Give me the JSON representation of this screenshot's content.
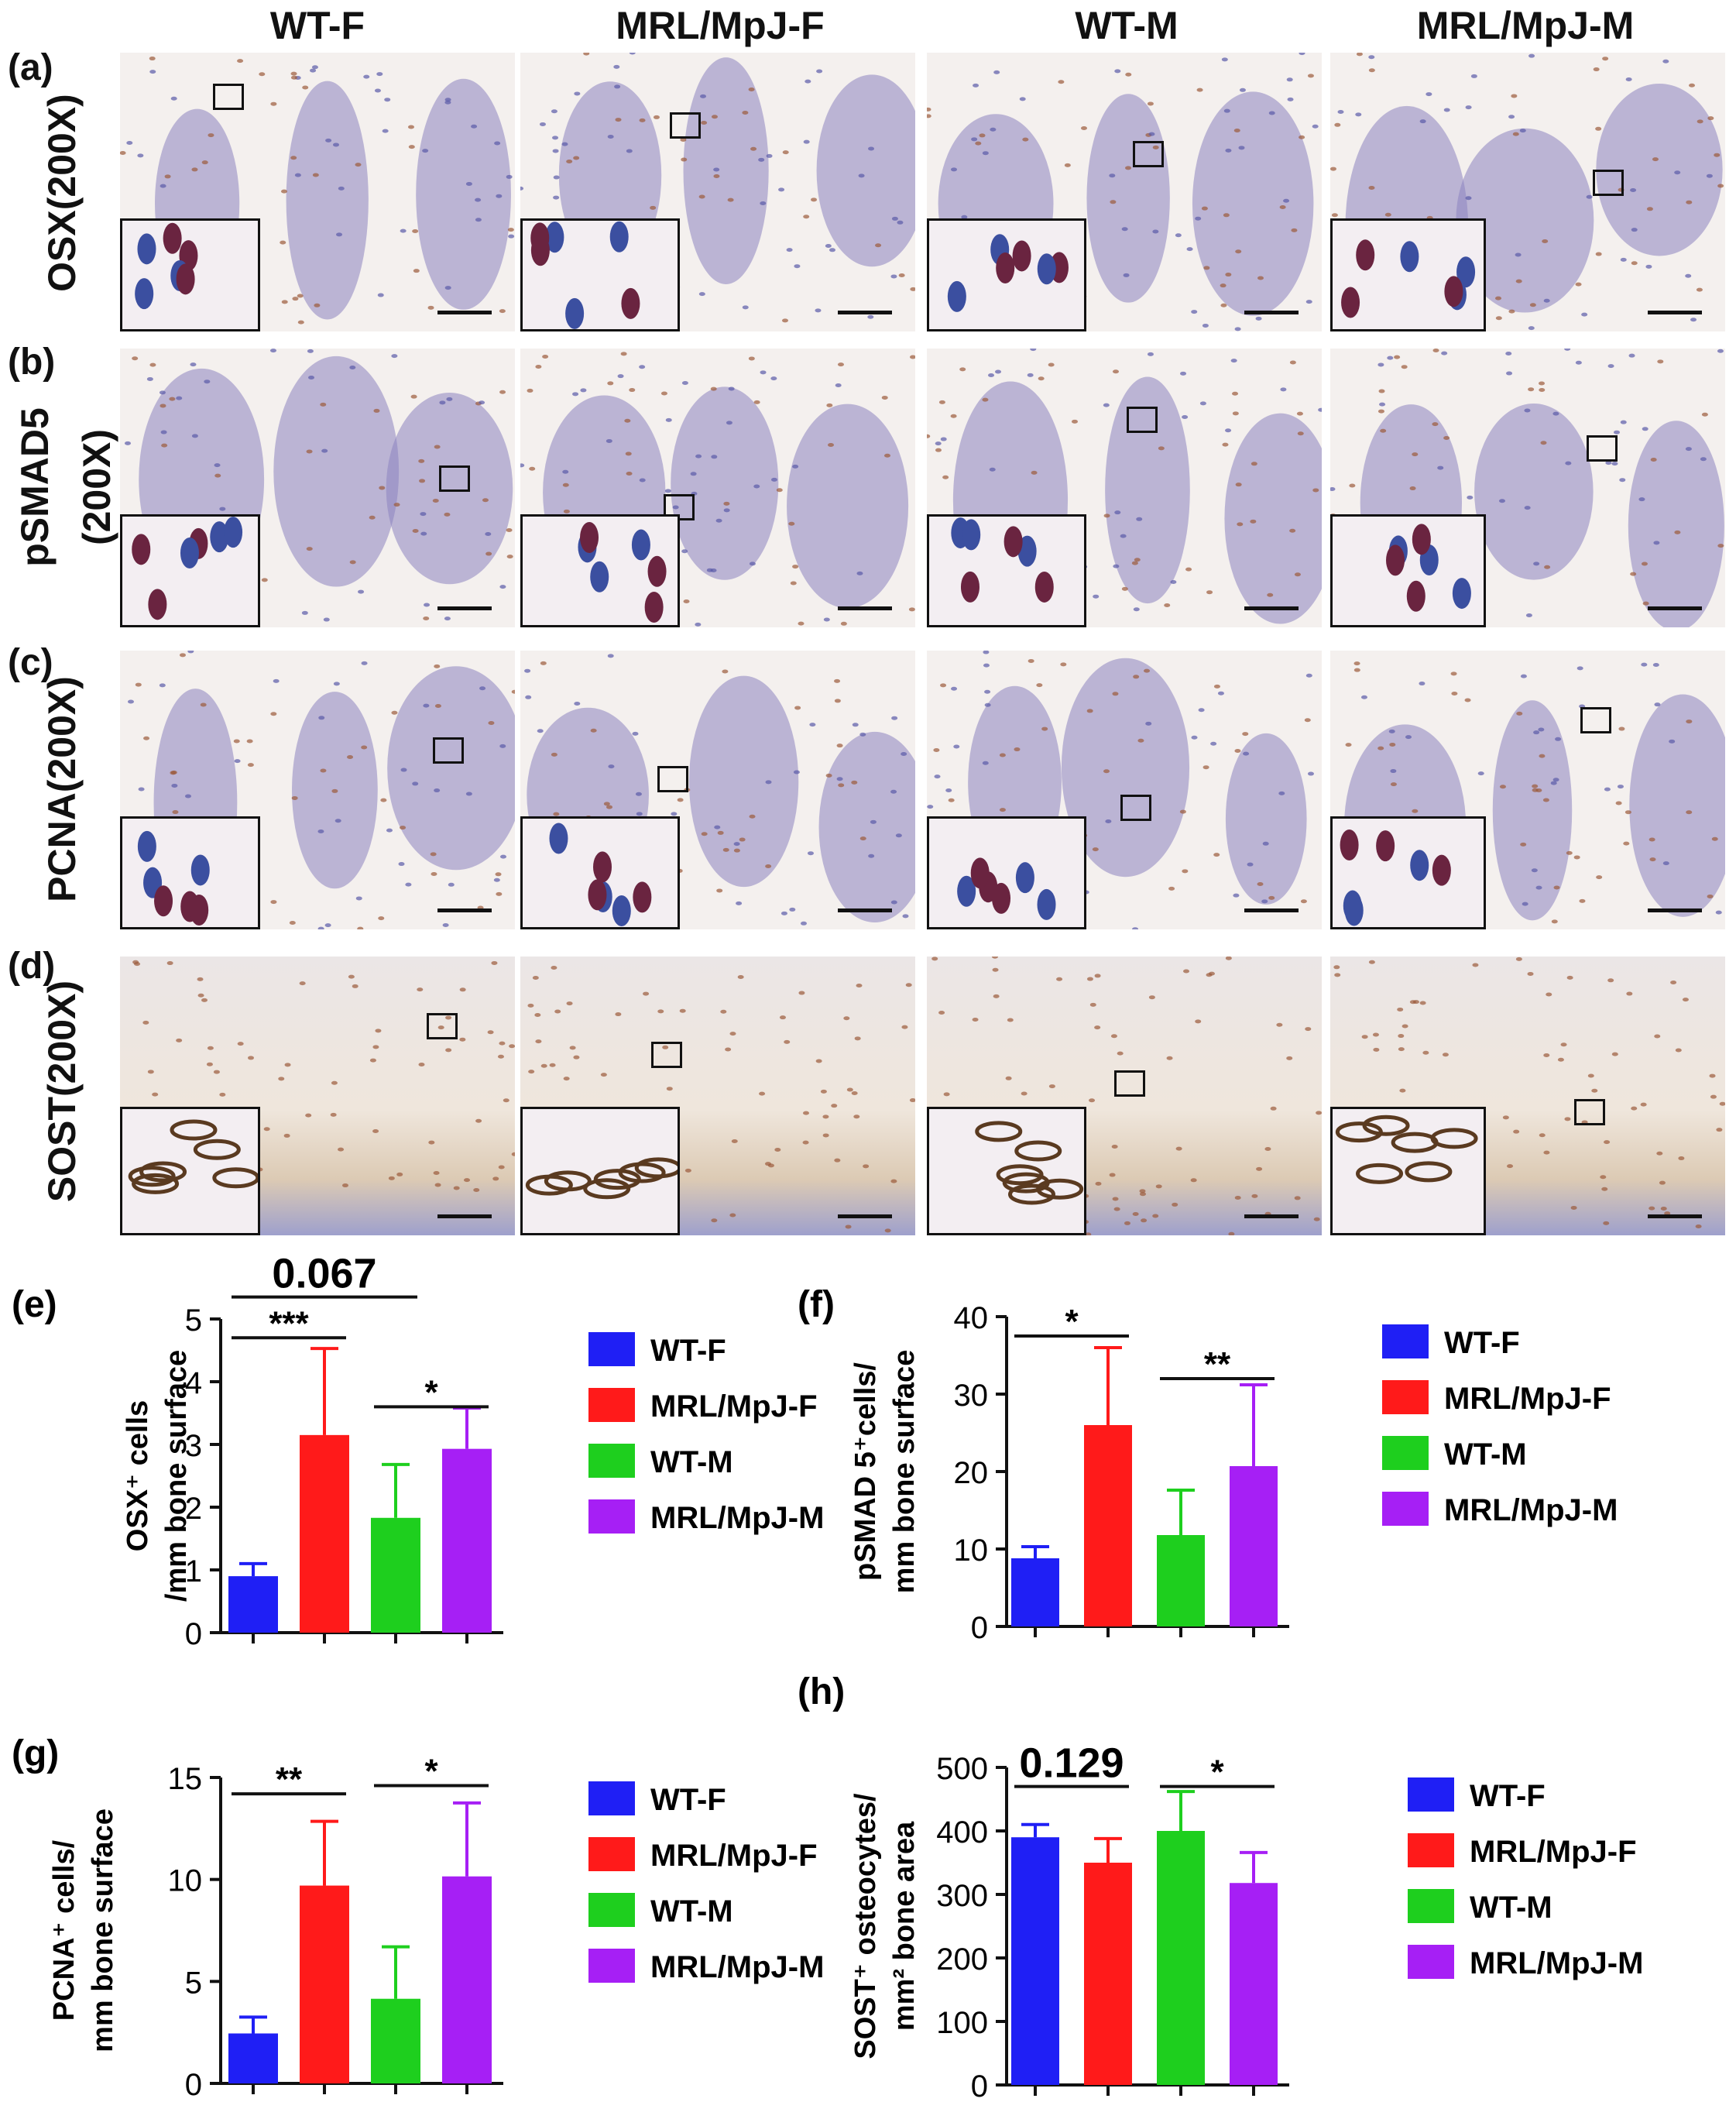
{
  "columns": [
    "WT-F",
    "MRL/MpJ-F",
    "WT-M",
    "MRL/MpJ-M"
  ],
  "rows": [
    {
      "letter": "(a)",
      "label": "OSX(200X)"
    },
    {
      "letter": "(b)",
      "label": "pSMAD5",
      "label2": "(200X)"
    },
    {
      "letter": "(c)",
      "label": "PCNA(200X)"
    },
    {
      "letter": "(d)",
      "label": "SOST(200X)"
    }
  ],
  "stain_colors": {
    "background": "#efe8ee",
    "bone": "#f4f0ee",
    "marrow": "#8d84bf",
    "brown": "#9b5a3a"
  },
  "series_colors": {
    "WT-F": "#1f1ff5",
    "MRL/MpJ-F": "#ff1a1a",
    "WT-M": "#1ecf1e",
    "MRL/MpJ-M": "#a61ff5"
  },
  "chart_data": [
    {
      "panel": "(e)",
      "type": "bar",
      "ylabel": [
        "OSX⁺ cells",
        "/mm bone surface"
      ],
      "categories": [
        "WT-F",
        "MRL/MpJ-F",
        "WT-M",
        "MRL/MpJ-M"
      ],
      "values": [
        0.9,
        3.15,
        1.83,
        2.93
      ],
      "errors": [
        0.2,
        1.38,
        0.85,
        0.65
      ],
      "ylim": [
        0,
        5
      ],
      "yticks": [
        0,
        1,
        2,
        3,
        4,
        5
      ],
      "annotations": [
        {
          "from": 0,
          "to": 1,
          "text": "***",
          "y": 4.7
        },
        {
          "from": 2,
          "to": 3,
          "text": "*",
          "y": 3.6
        },
        {
          "from": 0,
          "to": 2,
          "text": "0.067",
          "y": 5.35
        }
      ],
      "legend": [
        "WT-F",
        "MRL/MpJ-F",
        "WT-M",
        "MRL/MpJ-M"
      ]
    },
    {
      "panel": "(f)",
      "type": "bar",
      "ylabel": [
        "pSMAD 5⁺cells/",
        "mm bone surface"
      ],
      "categories": [
        "WT-F",
        "MRL/MpJ-F",
        "WT-M",
        "MRL/MpJ-M"
      ],
      "values": [
        8.8,
        26.0,
        11.8,
        20.7
      ],
      "errors": [
        1.5,
        10.0,
        5.8,
        10.5
      ],
      "ylim": [
        0,
        40
      ],
      "yticks": [
        0,
        10,
        20,
        30,
        40
      ],
      "annotations": [
        {
          "from": 0,
          "to": 1,
          "text": "*",
          "y": 37.5
        },
        {
          "from": 2,
          "to": 3,
          "text": "**",
          "y": 32.0
        }
      ],
      "legend": [
        "WT-F",
        "MRL/MpJ-F",
        "WT-M",
        "MRL/MpJ-M"
      ]
    },
    {
      "panel": "(g)",
      "type": "bar",
      "ylabel": [
        "PCNA⁺ cells/",
        "mm bone surface"
      ],
      "categories": [
        "WT-F",
        "MRL/MpJ-F",
        "WT-M",
        "MRL/MpJ-M"
      ],
      "values": [
        2.45,
        9.7,
        4.15,
        10.15
      ],
      "errors": [
        0.8,
        3.15,
        2.55,
        3.6
      ],
      "ylim": [
        0,
        15
      ],
      "yticks": [
        0,
        5,
        10,
        15
      ],
      "annotations": [
        {
          "from": 0,
          "to": 1,
          "text": "**",
          "y": 14.2
        },
        {
          "from": 2,
          "to": 3,
          "text": "*",
          "y": 14.6
        }
      ],
      "legend": [
        "WT-F",
        "MRL/MpJ-F",
        "WT-M",
        "MRL/MpJ-M"
      ]
    },
    {
      "panel": "(h)",
      "type": "bar",
      "ylabel": [
        "SOST⁺ osteocytes/",
        "mm² bone area"
      ],
      "categories": [
        "WT-F",
        "MRL/MpJ-F",
        "WT-M",
        "MRL/MpJ-M"
      ],
      "values": [
        390,
        350,
        400,
        318
      ],
      "errors": [
        20,
        38,
        62,
        48
      ],
      "ylim": [
        0,
        500
      ],
      "yticks": [
        0,
        100,
        200,
        300,
        400,
        500
      ],
      "annotations": [
        {
          "from": 0,
          "to": 1,
          "text": "0.129",
          "y": 470
        },
        {
          "from": 2,
          "to": 3,
          "text": "*",
          "y": 470
        }
      ],
      "legend": [
        "WT-F",
        "MRL/MpJ-F",
        "WT-M",
        "MRL/MpJ-M"
      ]
    }
  ]
}
